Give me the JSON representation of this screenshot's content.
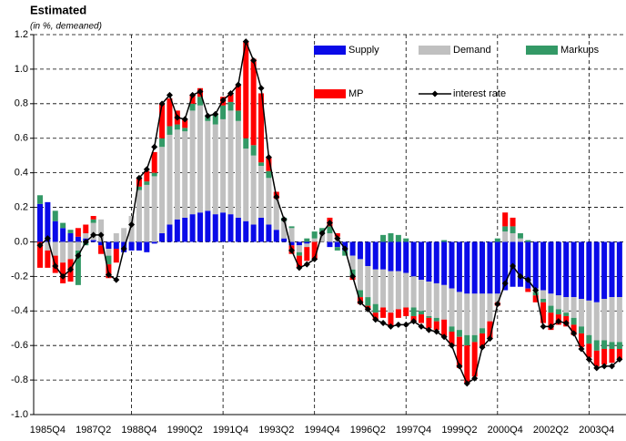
{
  "chart_data": {
    "type": "bar",
    "stacked": true,
    "title": "Estimated",
    "subtitle": "(in %, demeaned)",
    "categories": [
      null,
      "1985Q4",
      null,
      null,
      null,
      null,
      null,
      "1987Q2",
      null,
      null,
      null,
      null,
      null,
      "1988Q4",
      null,
      null,
      null,
      null,
      null,
      "1990Q2",
      null,
      null,
      null,
      null,
      null,
      "1991Q4",
      null,
      null,
      null,
      null,
      null,
      "1993Q2",
      null,
      null,
      null,
      null,
      null,
      "1994Q4",
      null,
      null,
      null,
      null,
      null,
      "1996Q2",
      null,
      null,
      null,
      null,
      null,
      "1997Q4",
      null,
      null,
      null,
      null,
      null,
      "1999Q2",
      null,
      null,
      null,
      null,
      null,
      "2000Q4",
      null,
      null,
      null,
      null,
      null,
      "2002Q2",
      null,
      null,
      null,
      null,
      null,
      "2003Q4",
      null,
      null,
      null
    ],
    "series": [
      {
        "name": "Supply",
        "color": "#0a0ae8",
        "values": [
          0.22,
          0.23,
          0.12,
          0.08,
          0.05,
          0.03,
          0.02,
          0.01,
          -0.02,
          -0.04,
          -0.04,
          -0.06,
          -0.05,
          -0.05,
          -0.06,
          -0.01,
          0.05,
          0.1,
          0.13,
          0.14,
          0.16,
          0.17,
          0.18,
          0.16,
          0.17,
          0.16,
          0.14,
          0.12,
          0.1,
          0.14,
          0.1,
          0.07,
          0.02,
          -0.02,
          -0.02,
          -0.01,
          0.0,
          0.0,
          -0.03,
          -0.03,
          -0.05,
          -0.08,
          -0.1,
          -0.14,
          -0.16,
          -0.16,
          -0.17,
          -0.17,
          -0.18,
          -0.2,
          -0.22,
          -0.23,
          -0.24,
          -0.25,
          -0.27,
          -0.29,
          -0.3,
          -0.3,
          -0.3,
          -0.3,
          -0.3,
          -0.28,
          -0.26,
          -0.26,
          -0.27,
          -0.27,
          -0.28,
          -0.3,
          -0.31,
          -0.32,
          -0.32,
          -0.33,
          -0.34,
          -0.35,
          -0.33,
          -0.32,
          -0.32
        ]
      },
      {
        "name": "Demand",
        "color": "#c0c0c0",
        "values": [
          0.0,
          -0.05,
          -0.08,
          -0.12,
          -0.1,
          -0.05,
          0.03,
          0.1,
          0.13,
          -0.04,
          0.05,
          0.08,
          0.15,
          0.3,
          0.33,
          0.38,
          0.5,
          0.52,
          0.52,
          0.5,
          0.6,
          0.62,
          0.52,
          0.52,
          0.54,
          0.6,
          0.56,
          0.42,
          0.4,
          0.3,
          0.27,
          0.18,
          0.1,
          0.08,
          -0.04,
          -0.02,
          0.02,
          0.05,
          0.05,
          0.03,
          0.0,
          -0.08,
          -0.18,
          -0.18,
          -0.2,
          -0.22,
          -0.24,
          -0.22,
          -0.2,
          -0.18,
          -0.18,
          -0.2,
          -0.2,
          -0.2,
          -0.22,
          -0.22,
          -0.24,
          -0.24,
          -0.2,
          -0.16,
          -0.05,
          0.06,
          0.05,
          0.02,
          0.0,
          -0.02,
          -0.05,
          -0.07,
          -0.08,
          -0.09,
          -0.12,
          -0.16,
          -0.2,
          -0.22,
          -0.24,
          -0.26,
          -0.26
        ]
      },
      {
        "name": "Markups",
        "color": "#339966",
        "values": [
          0.05,
          0.0,
          0.06,
          0.03,
          0.02,
          -0.2,
          -0.02,
          0.02,
          0.0,
          -0.05,
          0.0,
          0.0,
          0.0,
          0.02,
          0.02,
          0.02,
          0.05,
          0.05,
          0.03,
          0.02,
          0.04,
          0.05,
          0.03,
          0.06,
          0.08,
          0.05,
          0.06,
          0.06,
          0.06,
          0.02,
          0.04,
          0.0,
          0.02,
          0.01,
          -0.02,
          0.02,
          0.04,
          0.03,
          0.04,
          -0.02,
          -0.03,
          -0.04,
          -0.04,
          -0.05,
          -0.05,
          0.04,
          0.05,
          0.04,
          0.02,
          -0.05,
          -0.02,
          -0.01,
          -0.02,
          0.01,
          -0.03,
          -0.04,
          -0.06,
          -0.04,
          -0.03,
          0.0,
          0.02,
          0.03,
          0.04,
          0.03,
          0.01,
          -0.02,
          -0.02,
          -0.04,
          -0.03,
          -0.02,
          -0.04,
          -0.04,
          -0.05,
          -0.06,
          -0.05,
          -0.04,
          -0.04
        ]
      },
      {
        "name": "MP",
        "color": "#ff0000",
        "values": [
          -0.15,
          -0.1,
          -0.1,
          -0.12,
          -0.13,
          0.05,
          0.05,
          0.02,
          -0.05,
          -0.08,
          -0.08,
          0.0,
          0.0,
          0.05,
          0.06,
          0.12,
          0.2,
          0.16,
          0.08,
          0.05,
          0.05,
          0.05,
          0.0,
          0.0,
          0.05,
          0.05,
          0.15,
          0.56,
          0.5,
          0.4,
          0.08,
          0.04,
          0.0,
          -0.05,
          -0.07,
          -0.08,
          -0.1,
          0.0,
          0.05,
          0.02,
          0.0,
          -0.02,
          -0.04,
          -0.02,
          -0.04,
          -0.06,
          -0.08,
          -0.05,
          -0.05,
          -0.03,
          -0.05,
          -0.06,
          -0.05,
          -0.1,
          -0.08,
          -0.18,
          -0.22,
          -0.2,
          -0.08,
          -0.1,
          -0.02,
          0.08,
          0.05,
          0.0,
          -0.02,
          -0.04,
          -0.12,
          -0.1,
          -0.06,
          -0.06,
          -0.06,
          -0.08,
          -0.08,
          -0.09,
          -0.09,
          -0.08,
          -0.06
        ]
      },
      {
        "name": "interest rate",
        "type": "line",
        "color": "#000000",
        "values": [
          -0.02,
          0.02,
          -0.14,
          -0.2,
          -0.16,
          -0.08,
          0.0,
          0.04,
          0.04,
          -0.19,
          -0.22,
          -0.04,
          0.1,
          0.37,
          0.42,
          0.55,
          0.8,
          0.85,
          0.72,
          0.71,
          0.85,
          0.87,
          0.73,
          0.74,
          0.82,
          0.86,
          0.91,
          1.16,
          1.05,
          0.89,
          0.49,
          0.26,
          0.13,
          -0.05,
          -0.15,
          -0.13,
          -0.1,
          0.05,
          0.11,
          0.02,
          -0.04,
          -0.2,
          -0.35,
          -0.39,
          -0.45,
          -0.47,
          -0.49,
          -0.48,
          -0.48,
          -0.46,
          -0.49,
          -0.51,
          -0.52,
          -0.55,
          -0.6,
          -0.72,
          -0.82,
          -0.79,
          -0.61,
          -0.56,
          -0.36,
          -0.24,
          -0.14,
          -0.2,
          -0.22,
          -0.28,
          -0.49,
          -0.49,
          -0.46,
          -0.47,
          -0.53,
          -0.62,
          -0.68,
          -0.73,
          -0.72,
          -0.72,
          -0.68
        ]
      }
    ],
    "ylim": [
      -1.0,
      1.2
    ],
    "yticks": [
      {
        "value": -1,
        "label": "-1.0"
      },
      -0.8,
      -0.6,
      -0.4,
      -0.2,
      {
        "value": 0,
        "label": "0.0"
      },
      0.2,
      0.4,
      0.6,
      0.8,
      {
        "value": 1,
        "label": "1.0"
      },
      1.2
    ],
    "xgrid_every": 12,
    "grid": true,
    "legend": "top-right"
  }
}
